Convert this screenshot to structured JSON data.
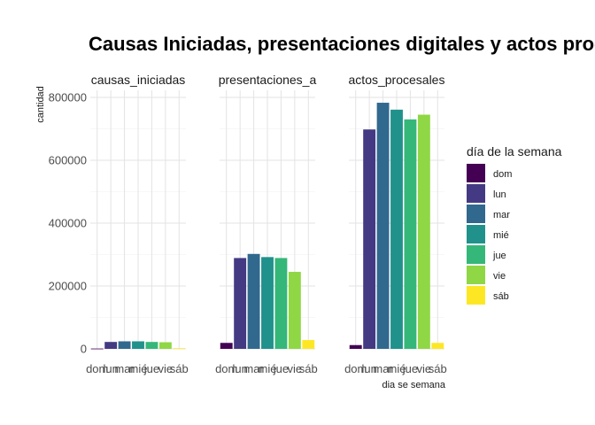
{
  "chart_data": {
    "type": "bar",
    "title": "Causas Iniciadas, presentaciones digitales y actos procesales",
    "xlabel": "dia se semana",
    "ylabel": "cantidad",
    "ylim": [
      0,
      800000
    ],
    "yticks": [
      0,
      200000,
      400000,
      600000,
      800000
    ],
    "grid": true,
    "categories": [
      "dom",
      "lun",
      "mar",
      "mié",
      "jue",
      "vie",
      "sáb"
    ],
    "legend": {
      "title": "día de la semana",
      "position": "right",
      "entries": [
        "dom",
        "lun",
        "mar",
        "mié",
        "jue",
        "vie",
        "sáb"
      ]
    },
    "colors": [
      "#440154",
      "#443a83",
      "#31688e",
      "#21918c",
      "#35b779",
      "#8fd744",
      "#fde725"
    ],
    "panels": [
      {
        "name": "causas_iniciadas",
        "values": [
          1000,
          22000,
          24000,
          24000,
          22000,
          21000,
          2000
        ]
      },
      {
        "name": "presentaciones_a",
        "values": [
          19000,
          289000,
          302000,
          292000,
          289000,
          245000,
          28000
        ]
      },
      {
        "name": "actos_procesales",
        "values": [
          12000,
          698000,
          783000,
          761000,
          730000,
          745000,
          19000
        ]
      }
    ]
  }
}
